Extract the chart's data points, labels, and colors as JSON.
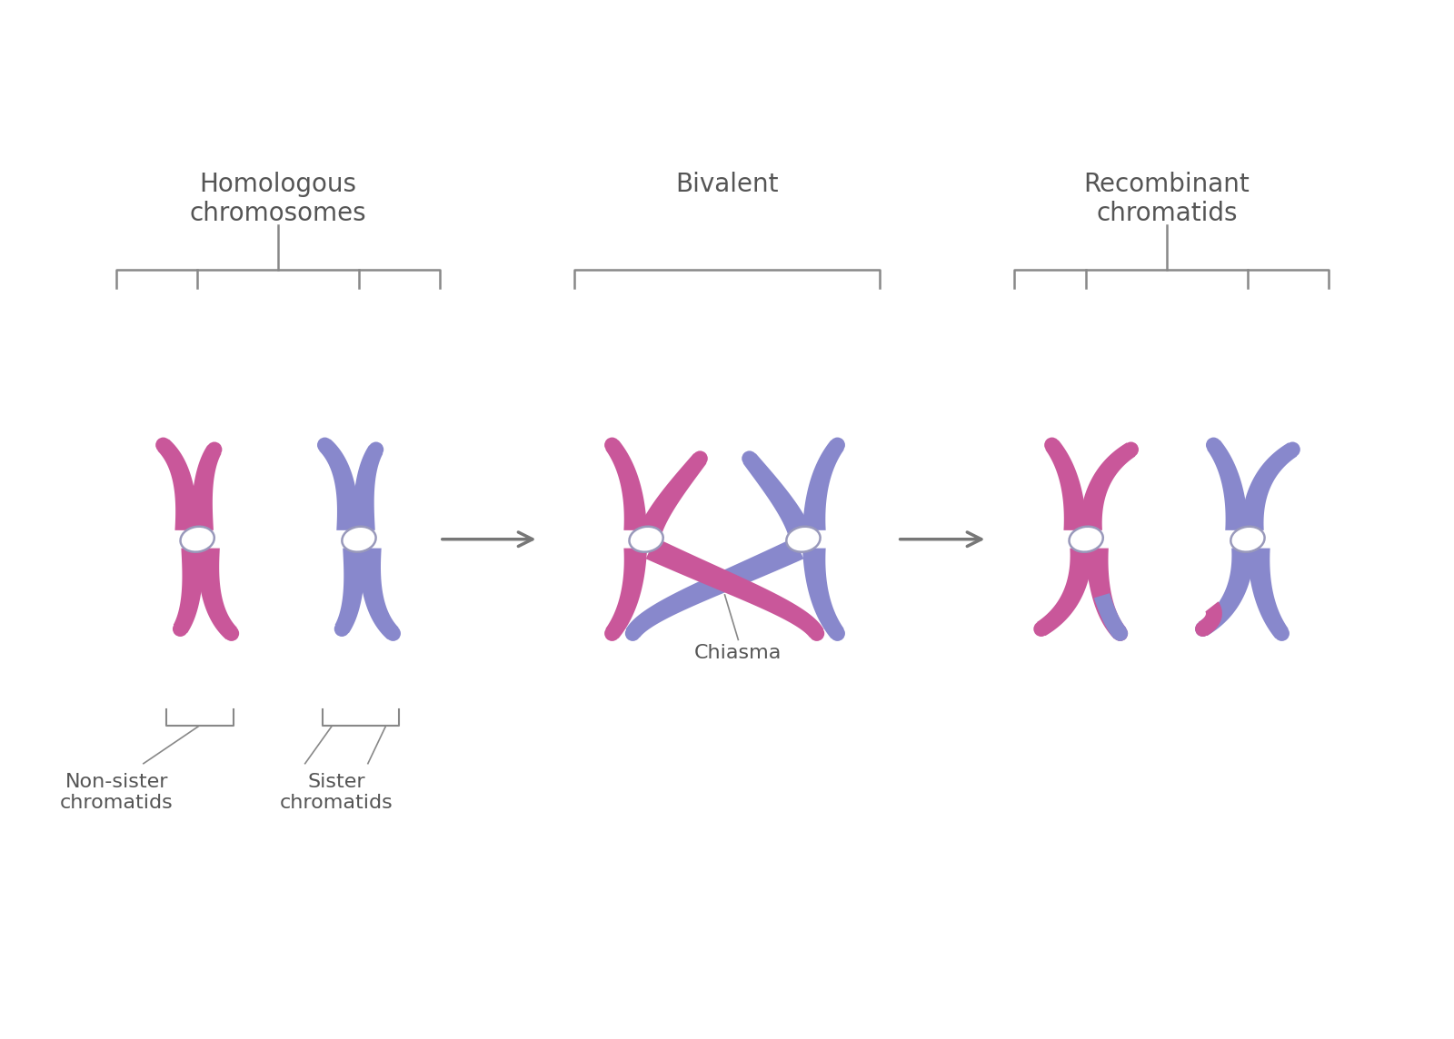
{
  "bg_color": "#ffffff",
  "pink": "#c9579a",
  "blue": "#8888cc",
  "pink_light": "#d47ab5",
  "blue_light": "#9999dd",
  "centromere_edge": "#9999bb",
  "text_color": "#555555",
  "arrow_color": "#777777",
  "bracket_color": "#888888",
  "title1": "Homologous\nchromosomes",
  "title2": "Bivalent",
  "title3": "Recombinant\nchromatids",
  "label_ns": "Non-sister\nchromatids",
  "label_s": "Sister\nchromatids",
  "label_chiasma": "Chiasma",
  "font_size_title": 20,
  "font_size_label": 16
}
